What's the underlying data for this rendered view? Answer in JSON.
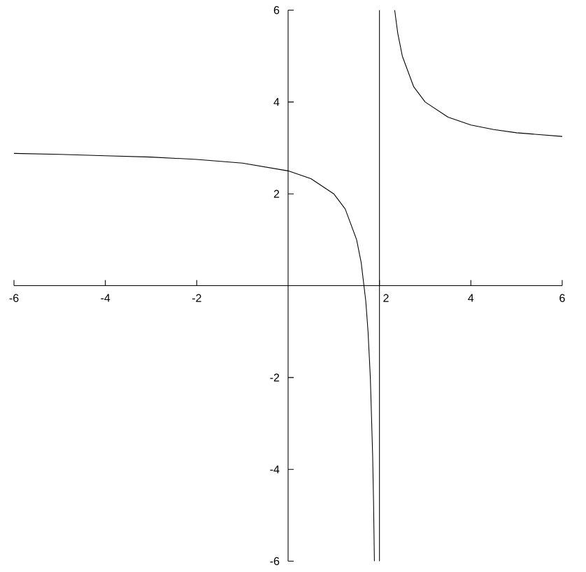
{
  "chart_data": {
    "type": "line",
    "xlim": [
      -6,
      6
    ],
    "ylim": [
      -6,
      6
    ],
    "xticks": [
      -6,
      -4,
      -2,
      2,
      4,
      6
    ],
    "yticks": [
      -6,
      -4,
      -2,
      2,
      4,
      6
    ],
    "series": [
      {
        "color": "#000000",
        "x": [
          -6,
          -5,
          -4,
          -3,
          -2,
          -1,
          0,
          0.5,
          1,
          1.25,
          1.5,
          1.6,
          1.7,
          1.75,
          1.8,
          1.85,
          1.87,
          1.889
        ],
        "values": [
          2.88,
          2.86,
          2.83,
          2.8,
          2.75,
          2.67,
          2.5,
          2.33,
          2,
          1.67,
          1,
          0.5,
          -0.33,
          -1,
          -2,
          -3.67,
          -4.69,
          -6
        ]
      },
      {
        "color": "#000000",
        "x": [
          2.333,
          2.4,
          2.5,
          2.75,
          3,
          3.5,
          4,
          4.5,
          5,
          5.5,
          6
        ],
        "values": [
          6,
          5.5,
          5,
          4.33,
          4,
          3.67,
          3.5,
          3.4,
          3.33,
          3.29,
          3.25
        ]
      }
    ],
    "ref_lines": [
      {
        "axis": "x",
        "value": 2,
        "color": "#000000"
      }
    ],
    "grid": false,
    "marker": "none",
    "line_style": "solid"
  }
}
